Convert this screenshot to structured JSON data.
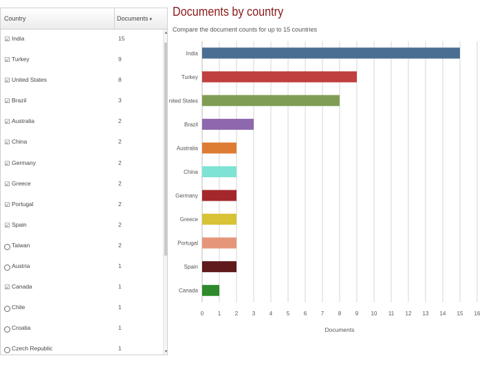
{
  "table": {
    "header_country": "Country",
    "header_documents": "Documents",
    "sort_indicator": "▾",
    "rows": [
      {
        "country": "India",
        "count": "15",
        "checked": true
      },
      {
        "country": "Turkey",
        "count": "9",
        "checked": true
      },
      {
        "country": "United States",
        "count": "8",
        "checked": true
      },
      {
        "country": "Brazil",
        "count": "3",
        "checked": true
      },
      {
        "country": "Australia",
        "count": "2",
        "checked": true
      },
      {
        "country": "China",
        "count": "2",
        "checked": true
      },
      {
        "country": "Germany",
        "count": "2",
        "checked": true
      },
      {
        "country": "Greece",
        "count": "2",
        "checked": true
      },
      {
        "country": "Portugal",
        "count": "2",
        "checked": true
      },
      {
        "country": "Spain",
        "count": "2",
        "checked": true
      },
      {
        "country": "Taiwan",
        "count": "2",
        "checked": false
      },
      {
        "country": "Austria",
        "count": "1",
        "checked": false
      },
      {
        "country": "Canada",
        "count": "1",
        "checked": true
      },
      {
        "country": "Chile",
        "count": "1",
        "checked": false
      },
      {
        "country": "Croatia",
        "count": "1",
        "checked": false
      },
      {
        "country": "Czech Republic",
        "count": "1",
        "checked": false
      }
    ],
    "checked_icon": "☑",
    "unchecked_icon": ""
  },
  "scrollbar": {
    "up_arrow": "▴",
    "down_arrow": "▾"
  },
  "chart_title": "Documents by country",
  "chart_subtitle": "Compare the document counts for up to 15 countries",
  "chart_data": {
    "type": "bar",
    "orientation": "horizontal",
    "categories": [
      "India",
      "Turkey",
      "United States",
      "Brazil",
      "Australia",
      "China",
      "Germany",
      "Greece",
      "Portugal",
      "Spain",
      "Canada"
    ],
    "values": [
      15,
      9,
      8,
      3,
      2,
      2,
      2,
      2,
      2,
      2,
      1
    ],
    "colors": [
      "#4a6e91",
      "#c0403f",
      "#7f9e54",
      "#8e68ae",
      "#dd7d33",
      "#7ee3d4",
      "#a4282b",
      "#d8c236",
      "#e5967a",
      "#601a1c",
      "#2e8a2b"
    ],
    "xlabel": "Documents",
    "ylabel": "",
    "xlim": [
      0,
      16
    ],
    "xticks": [
      0,
      1,
      2,
      3,
      4,
      5,
      6,
      7,
      8,
      9,
      10,
      11,
      12,
      13,
      14,
      15,
      16
    ],
    "grid": true,
    "legend": "none"
  }
}
